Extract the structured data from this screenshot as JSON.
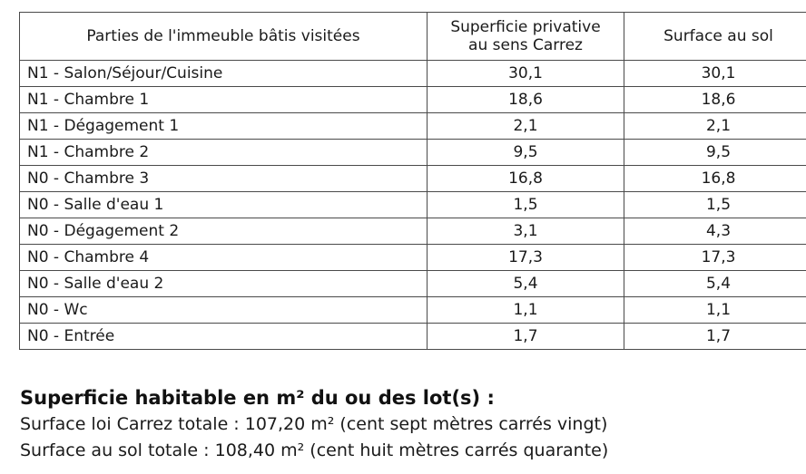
{
  "table": {
    "headers": {
      "parts": "Parties de l'immeuble bâtis visitées",
      "carrez": "Superficie privative au sens Carrez",
      "sol": "Surface au sol"
    },
    "rows": [
      {
        "part": "N1 - Salon/Séjour/Cuisine",
        "carrez": "30,1",
        "sol": "30,1"
      },
      {
        "part": "N1 - Chambre 1",
        "carrez": "18,6",
        "sol": "18,6"
      },
      {
        "part": "N1 - Dégagement 1",
        "carrez": "2,1",
        "sol": "2,1"
      },
      {
        "part": "N1 - Chambre 2",
        "carrez": "9,5",
        "sol": "9,5"
      },
      {
        "part": "N0 - Chambre 3",
        "carrez": "16,8",
        "sol": "16,8"
      },
      {
        "part": "N0 - Salle d'eau 1",
        "carrez": "1,5",
        "sol": "1,5"
      },
      {
        "part": "N0 - Dégagement 2",
        "carrez": "3,1",
        "sol": "4,3"
      },
      {
        "part": "N0 - Chambre 4",
        "carrez": "17,3",
        "sol": "17,3"
      },
      {
        "part": "N0 - Salle d'eau 2",
        "carrez": "5,4",
        "sol": "5,4"
      },
      {
        "part": "N0 - Wc",
        "carrez": "1,1",
        "sol": "1,1"
      },
      {
        "part": "N0 - Entrée",
        "carrez": "1,7",
        "sol": "1,7"
      }
    ]
  },
  "summary": {
    "heading": "Superficie habitable en m² du ou des lot(s) :",
    "carrez_total": "Surface loi Carrez totale : 107,20 m² (cent sept mètres carrés vingt)",
    "sol_total": "Surface au sol totale : 108,40 m² (cent huit mètres carrés quarante)"
  }
}
